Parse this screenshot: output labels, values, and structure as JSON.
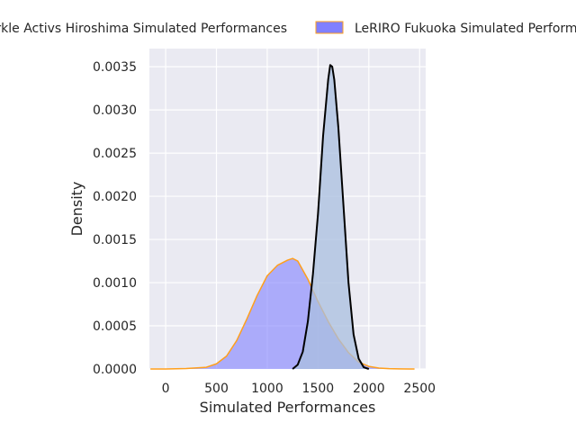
{
  "chart_data": {
    "type": "area",
    "xlabel": "Simulated Performances",
    "ylabel": "Density",
    "xlim": [
      -160,
      2560
    ],
    "ylim": [
      0,
      0.00371
    ],
    "x_ticks": [
      0,
      500,
      1000,
      1500,
      2000,
      2500
    ],
    "y_ticks": [
      0.0,
      0.0005,
      0.001,
      0.0015,
      0.002,
      0.0025,
      0.003,
      0.0035
    ],
    "y_tick_labels": [
      "0.0000",
      "0.0005",
      "0.0010",
      "0.0015",
      "0.0020",
      "0.0025",
      "0.0030",
      "0.0035"
    ],
    "grid": true,
    "legend_placement": "top-center, outside",
    "background_color": "#eaeaf2",
    "series": [
      {
        "name": "Kaminomachi Sparkle Activs Hiroshima Simulated Performances",
        "fill_color": "#aabfdf",
        "line_color": "#000000",
        "x": [
          1250,
          1300,
          1350,
          1400,
          1450,
          1500,
          1550,
          1600,
          1620,
          1640,
          1660,
          1700,
          1750,
          1800,
          1850,
          1900,
          1950,
          2000
        ],
        "y": [
          0.0,
          5e-05,
          0.0002,
          0.00055,
          0.0011,
          0.0018,
          0.0027,
          0.00335,
          0.00352,
          0.0035,
          0.00335,
          0.0028,
          0.0019,
          0.001,
          0.0004,
          0.00012,
          2e-05,
          0.0
        ]
      },
      {
        "name": "LeRIRO Fukuoka Simulated Performances",
        "fill_color": "#8080ff",
        "line_color": "#ff9f1c",
        "x": [
          -150,
          0,
          200,
          400,
          500,
          600,
          700,
          800,
          900,
          1000,
          1100,
          1200,
          1250,
          1300,
          1400,
          1500,
          1600,
          1700,
          1800,
          1900,
          2000,
          2100,
          2200,
          2300,
          2400,
          2450
        ],
        "y": [
          0.0,
          0.0,
          5e-06,
          2e-05,
          6e-05,
          0.00015,
          0.00033,
          0.00058,
          0.00085,
          0.00108,
          0.0012,
          0.00126,
          0.00128,
          0.00125,
          0.00104,
          0.00078,
          0.00055,
          0.00035,
          0.00019,
          8e-05,
          3e-05,
          1e-05,
          4e-06,
          1e-06,
          0.0,
          0.0
        ]
      }
    ]
  }
}
